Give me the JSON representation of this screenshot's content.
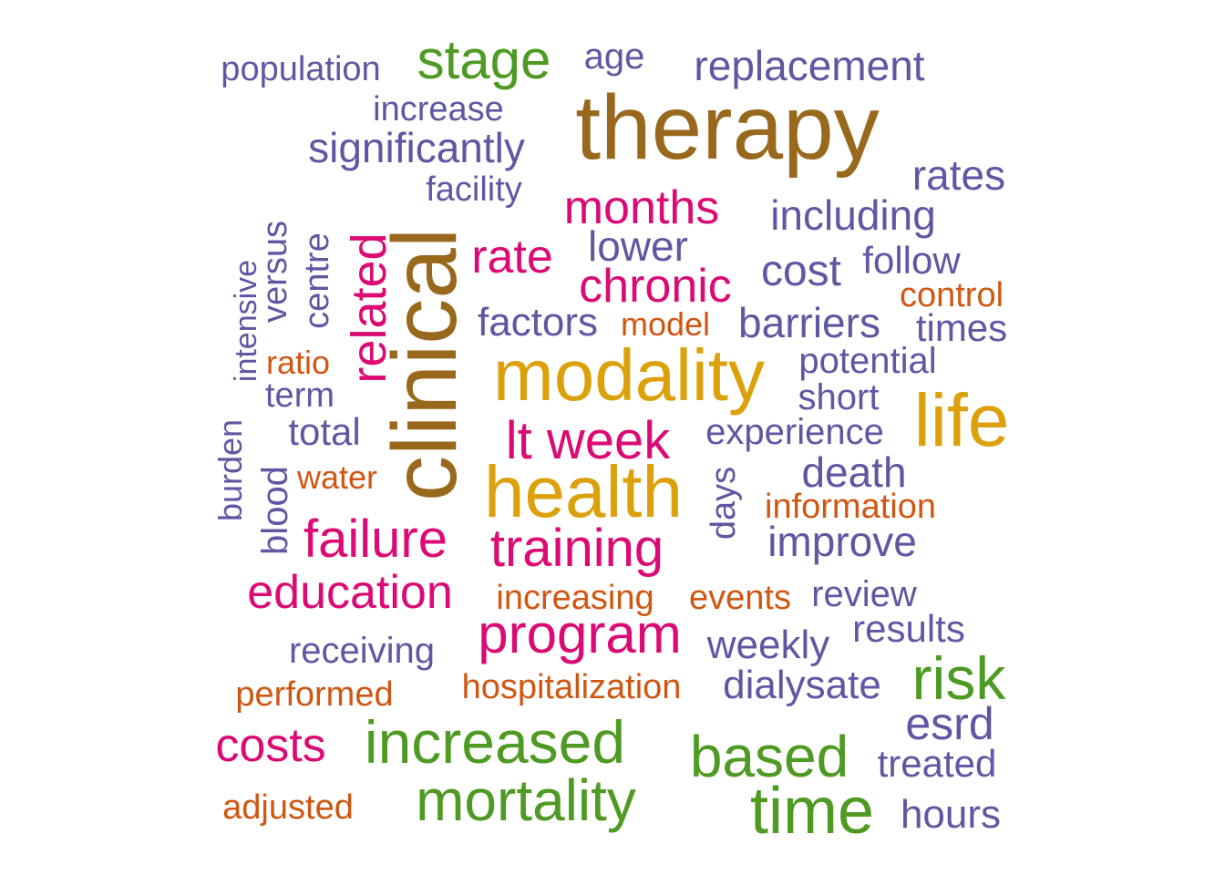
{
  "palette": {
    "purple": "#5e58a3",
    "green": "#4e9a22",
    "brown": "#98681d",
    "magenta": "#db0a74",
    "gold": "#dca10a",
    "orange": "#d05712"
  },
  "words": [
    {
      "text": "population",
      "color": "purple"
    },
    {
      "text": "stage",
      "color": "green"
    },
    {
      "text": "age",
      "color": "purple"
    },
    {
      "text": "replacement",
      "color": "purple"
    },
    {
      "text": "therapy",
      "color": "brown"
    },
    {
      "text": "increase",
      "color": "purple"
    },
    {
      "text": "significantly",
      "color": "purple"
    },
    {
      "text": "rates",
      "color": "purple"
    },
    {
      "text": "facility",
      "color": "purple"
    },
    {
      "text": "months",
      "color": "magenta"
    },
    {
      "text": "including",
      "color": "purple"
    },
    {
      "text": "intensive",
      "color": "purple"
    },
    {
      "text": "versus",
      "color": "purple"
    },
    {
      "text": "centre",
      "color": "purple"
    },
    {
      "text": "related",
      "color": "magenta"
    },
    {
      "text": "clinical",
      "color": "brown"
    },
    {
      "text": "rate",
      "color": "magenta"
    },
    {
      "text": "lower",
      "color": "purple"
    },
    {
      "text": "follow",
      "color": "purple"
    },
    {
      "text": "cost",
      "color": "purple"
    },
    {
      "text": "chronic",
      "color": "magenta"
    },
    {
      "text": "control",
      "color": "orange"
    },
    {
      "text": "factors",
      "color": "purple"
    },
    {
      "text": "model",
      "color": "orange"
    },
    {
      "text": "barriers",
      "color": "purple"
    },
    {
      "text": "times",
      "color": "purple"
    },
    {
      "text": "ratio",
      "color": "orange"
    },
    {
      "text": "modality",
      "color": "gold"
    },
    {
      "text": "potential",
      "color": "purple"
    },
    {
      "text": "term",
      "color": "purple"
    },
    {
      "text": "short",
      "color": "purple"
    },
    {
      "text": "life",
      "color": "gold"
    },
    {
      "text": "burden",
      "color": "purple"
    },
    {
      "text": "total",
      "color": "purple"
    },
    {
      "text": "lt week",
      "color": "magenta"
    },
    {
      "text": "experience",
      "color": "purple"
    },
    {
      "text": "blood",
      "color": "purple"
    },
    {
      "text": "water",
      "color": "orange"
    },
    {
      "text": "health",
      "color": "gold"
    },
    {
      "text": "days",
      "color": "purple"
    },
    {
      "text": "death",
      "color": "purple"
    },
    {
      "text": "information",
      "color": "orange"
    },
    {
      "text": "failure",
      "color": "magenta"
    },
    {
      "text": "training",
      "color": "magenta"
    },
    {
      "text": "improve",
      "color": "purple"
    },
    {
      "text": "education",
      "color": "magenta"
    },
    {
      "text": "increasing",
      "color": "orange"
    },
    {
      "text": "events",
      "color": "orange"
    },
    {
      "text": "review",
      "color": "purple"
    },
    {
      "text": "program",
      "color": "magenta"
    },
    {
      "text": "results",
      "color": "purple"
    },
    {
      "text": "receiving",
      "color": "purple"
    },
    {
      "text": "weekly",
      "color": "purple"
    },
    {
      "text": "risk",
      "color": "green"
    },
    {
      "text": "performed",
      "color": "orange"
    },
    {
      "text": "hospitalization",
      "color": "orange"
    },
    {
      "text": "dialysate",
      "color": "purple"
    },
    {
      "text": "esrd",
      "color": "purple"
    },
    {
      "text": "costs",
      "color": "magenta"
    },
    {
      "text": "increased",
      "color": "green"
    },
    {
      "text": "based",
      "color": "green"
    },
    {
      "text": "treated",
      "color": "purple"
    },
    {
      "text": "mortality",
      "color": "green"
    },
    {
      "text": "time",
      "color": "green"
    },
    {
      "text": "adjusted",
      "color": "orange"
    },
    {
      "text": "hours",
      "color": "purple"
    }
  ]
}
